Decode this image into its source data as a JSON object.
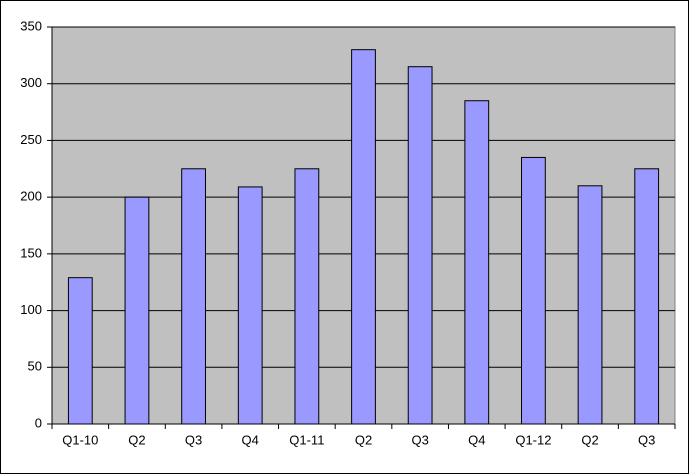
{
  "chart_data": {
    "type": "bar",
    "categories": [
      "Q1-10",
      "Q2",
      "Q3",
      "Q4",
      "Q1-11",
      "Q2",
      "Q3",
      "Q4",
      "Q1-12",
      "Q2",
      "Q3"
    ],
    "values": [
      129,
      200,
      225,
      209,
      225,
      330,
      315,
      285,
      235,
      210,
      225
    ],
    "color": "#9999ff",
    "ylim": [
      0,
      350
    ],
    "yticks": [
      0,
      50,
      100,
      150,
      200,
      250,
      300,
      350
    ],
    "grid": true
  }
}
